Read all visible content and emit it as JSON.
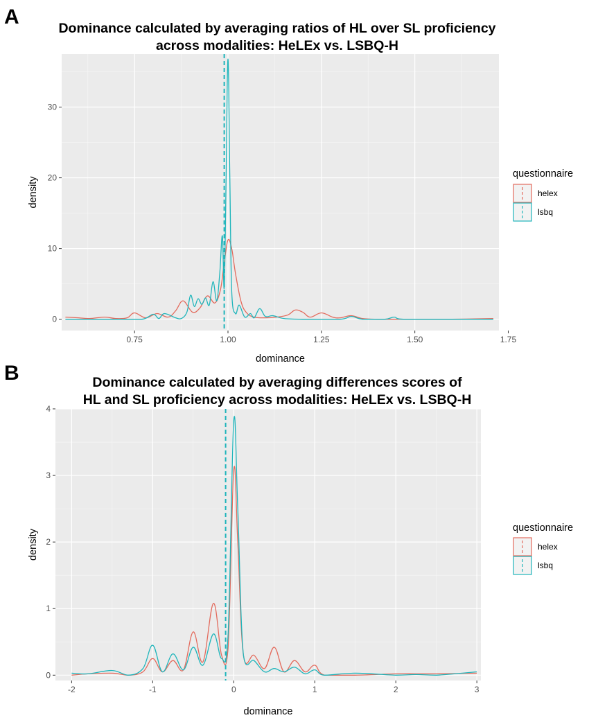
{
  "chart_data": [
    {
      "panel": "A",
      "type": "line",
      "title_lines": [
        "Dominance calculated by averaging ratios of HL over SL proficiency",
        "across modalities: HeLEx vs. LSBQ-H"
      ],
      "xlabel": "dominance",
      "ylabel": "density",
      "xlim": [
        0.555,
        1.725
      ],
      "ylim": [
        -1.6,
        37.5
      ],
      "x_ticks": [
        0.75,
        1.0,
        1.25,
        1.5,
        1.75
      ],
      "x_tick_labels": [
        "0.75",
        "1.00",
        "1.25",
        "1.50",
        "1.75"
      ],
      "y_ticks": [
        0,
        10,
        20,
        30
      ],
      "y_tick_labels": [
        "0",
        "10",
        "20",
        "30"
      ],
      "vline_x": 0.99,
      "legend": {
        "title": "questionnaire",
        "position": "right",
        "entries": [
          {
            "label": "helex",
            "color": "#e36b5d"
          },
          {
            "label": "lsbq",
            "color": "#1fb5bb"
          }
        ]
      },
      "series": [
        {
          "name": "helex",
          "color": "#e36b5d",
          "x": [
            0.565,
            0.6,
            0.63,
            0.67,
            0.7,
            0.73,
            0.75,
            0.78,
            0.81,
            0.84,
            0.86,
            0.88,
            0.905,
            0.925,
            0.945,
            0.965,
            0.98,
            0.99,
            1.0,
            1.01,
            1.02,
            1.035,
            1.05,
            1.07,
            1.1,
            1.13,
            1.16,
            1.18,
            1.2,
            1.22,
            1.25,
            1.28,
            1.3,
            1.33,
            1.36,
            1.4,
            1.5,
            1.6,
            1.71
          ],
          "y": [
            0.3,
            0.2,
            0.1,
            0.3,
            0.1,
            0.2,
            0.9,
            0.2,
            0.8,
            0.3,
            1.2,
            2.6,
            1.0,
            1.6,
            3.3,
            2.3,
            4.2,
            8.0,
            11.2,
            10.0,
            6.5,
            2.5,
            0.9,
            0.3,
            0.2,
            0.3,
            0.6,
            1.3,
            1.0,
            0.3,
            0.9,
            0.3,
            0.2,
            0.5,
            0.1,
            0.0,
            0.0,
            0.0,
            0.1
          ]
        },
        {
          "name": "lsbq",
          "color": "#1fb5bb",
          "x": [
            0.565,
            0.6,
            0.7,
            0.77,
            0.8,
            0.815,
            0.83,
            0.86,
            0.875,
            0.89,
            0.9,
            0.91,
            0.92,
            0.93,
            0.94,
            0.95,
            0.96,
            0.97,
            0.978,
            0.985,
            0.99,
            0.995,
            1.0,
            1.005,
            1.01,
            1.02,
            1.03,
            1.045,
            1.06,
            1.07,
            1.085,
            1.1,
            1.12,
            1.15,
            1.2,
            1.3,
            1.33,
            1.36,
            1.42,
            1.445,
            1.47,
            1.6,
            1.71
          ],
          "y": [
            0.0,
            0.0,
            0.0,
            0.0,
            0.7,
            0.1,
            0.8,
            0.2,
            0.1,
            1.0,
            3.4,
            1.8,
            2.9,
            2.1,
            3.0,
            2.0,
            5.3,
            2.6,
            6.5,
            11.8,
            4.5,
            20.0,
            36.8,
            20.0,
            4.0,
            0.8,
            2.0,
            0.3,
            0.8,
            0.2,
            1.5,
            0.4,
            0.5,
            0.1,
            0.0,
            0.0,
            0.4,
            0.0,
            0.0,
            0.3,
            0.0,
            0.0,
            0.0
          ]
        }
      ]
    },
    {
      "panel": "B",
      "type": "line",
      "title_lines": [
        "Dominance calculated by averaging differences scores of",
        "HL and SL proficiency across modalities: HeLEx vs. LSBQ-H"
      ],
      "xlabel": "dominance",
      "ylabel": "density",
      "xlim": [
        -2.2,
        3.05
      ],
      "ylim": [
        -0.08,
        4.0
      ],
      "x_ticks": [
        -2,
        -1,
        0,
        1,
        2,
        3
      ],
      "x_tick_labels": [
        "-2",
        "-1",
        "0",
        "1",
        "2",
        "3"
      ],
      "y_ticks": [
        0,
        1,
        2,
        3,
        4
      ],
      "y_tick_labels": [
        "0",
        "1",
        "2",
        "3",
        "4"
      ],
      "vline_x": -0.1,
      "legend": {
        "title": "questionnaire",
        "position": "right",
        "entries": [
          {
            "label": "helex",
            "color": "#e36b5d"
          },
          {
            "label": "lsbq",
            "color": "#1fb5bb"
          }
        ]
      },
      "series": [
        {
          "name": "helex",
          "color": "#e36b5d",
          "x": [
            -2.0,
            -1.8,
            -1.5,
            -1.3,
            -1.12,
            -1.0,
            -0.88,
            -0.75,
            -0.62,
            -0.5,
            -0.38,
            -0.25,
            -0.15,
            -0.07,
            0.0,
            0.05,
            0.12,
            0.25,
            0.38,
            0.5,
            0.62,
            0.75,
            0.88,
            1.0,
            1.12,
            1.5,
            2.0,
            2.25,
            2.5,
            3.0
          ],
          "y": [
            0.0,
            0.02,
            0.03,
            0.0,
            0.05,
            0.25,
            0.05,
            0.22,
            0.08,
            0.65,
            0.2,
            1.08,
            0.3,
            0.4,
            3.08,
            2.0,
            0.3,
            0.3,
            0.1,
            0.42,
            0.05,
            0.22,
            0.05,
            0.15,
            0.0,
            0.0,
            0.02,
            0.02,
            0.02,
            0.03
          ]
        },
        {
          "name": "lsbq",
          "color": "#1fb5bb",
          "x": [
            -2.0,
            -1.8,
            -1.5,
            -1.3,
            -1.12,
            -1.0,
            -0.88,
            -0.75,
            -0.62,
            -0.5,
            -0.38,
            -0.25,
            -0.15,
            -0.07,
            0.0,
            0.05,
            0.12,
            0.25,
            0.38,
            0.5,
            0.62,
            0.75,
            0.88,
            1.0,
            1.12,
            1.5,
            2.0,
            2.25,
            2.5,
            3.0
          ],
          "y": [
            0.03,
            0.02,
            0.07,
            0.0,
            0.1,
            0.45,
            0.05,
            0.32,
            0.08,
            0.42,
            0.15,
            0.62,
            0.25,
            0.6,
            3.82,
            2.5,
            0.3,
            0.22,
            0.05,
            0.1,
            0.05,
            0.12,
            0.02,
            0.08,
            0.0,
            0.03,
            0.0,
            0.01,
            0.0,
            0.05
          ]
        }
      ]
    }
  ]
}
